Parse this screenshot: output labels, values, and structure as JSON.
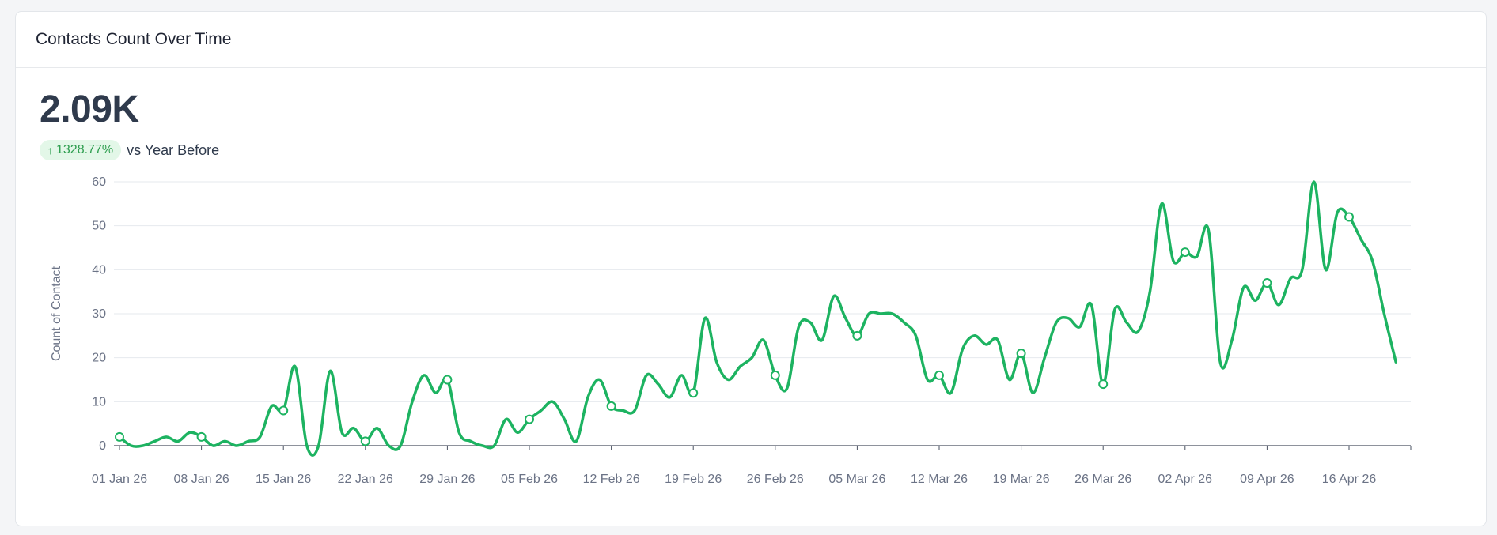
{
  "card": {
    "title": "Contacts Count Over Time",
    "kpi_value": "2.09K",
    "change": "1328.77%",
    "change_icon": "arrow-up-icon",
    "comparison_label": "vs Year Before"
  },
  "colors": {
    "line": "#1db361",
    "badge_bg": "#e3f7e8",
    "badge_text": "#2e9e4f"
  },
  "chart_data": {
    "type": "line",
    "ylabel": "Count of Contact",
    "xlabel": "",
    "ylim": [
      0,
      60
    ],
    "yticks": [
      0,
      10,
      20,
      30,
      40,
      50,
      60
    ],
    "grid": true,
    "xtick_labels": [
      "01 Jan 26",
      "08 Jan 26",
      "15 Jan 26",
      "22 Jan 26",
      "29 Jan 26",
      "05 Feb 26",
      "12 Feb 26",
      "19 Feb 26",
      "26 Feb 26",
      "05 Mar 26",
      "12 Mar 26",
      "19 Mar 26",
      "26 Mar 26",
      "02 Apr 26",
      "09 Apr 26",
      "16 Apr 26"
    ],
    "x_start": "2026-01-01",
    "series": [
      {
        "values": [
          2,
          0,
          0,
          1,
          2,
          1,
          3,
          2,
          0,
          1,
          0,
          1,
          2,
          9,
          8,
          18,
          0,
          0,
          17,
          3,
          4,
          1,
          4,
          0,
          0,
          10,
          16,
          12,
          15,
          3,
          1,
          0,
          0,
          6,
          3,
          6,
          8,
          10,
          6,
          1,
          11,
          15,
          9,
          8,
          8,
          16,
          14,
          11,
          16,
          12,
          29,
          19,
          15,
          18,
          20,
          24,
          16,
          13,
          27,
          28,
          24,
          34,
          29,
          25,
          30,
          30,
          30,
          28,
          25,
          15,
          16,
          12,
          22,
          25,
          23,
          24,
          15,
          21,
          12,
          20,
          28,
          29,
          27,
          32,
          14,
          31,
          28,
          26,
          35,
          55,
          42,
          44,
          43,
          49,
          19,
          24,
          36,
          33,
          37,
          32,
          38,
          40,
          60,
          40,
          53,
          52,
          47,
          42,
          30,
          19
        ],
        "markers": [
          0,
          7,
          14,
          21,
          28,
          35,
          42,
          49,
          56,
          63,
          70,
          77,
          84,
          91,
          98,
          105
        ]
      }
    ]
  }
}
